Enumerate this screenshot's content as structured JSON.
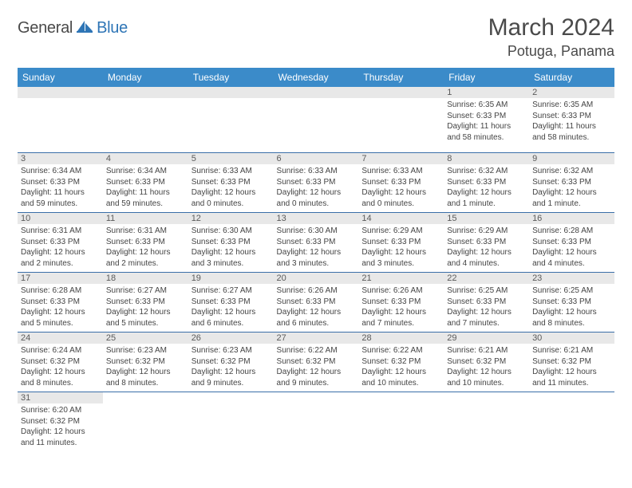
{
  "brand": {
    "part1": "General",
    "part2": "Blue"
  },
  "title": "March 2024",
  "location": "Potuga, Panama",
  "colors": {
    "header_bg": "#3b8bc9",
    "header_text": "#ffffff",
    "daynum_bg": "#e8e8e8",
    "daynum_text": "#5a5a5a",
    "row_border": "#3b6fa8",
    "brand_blue": "#2e75b6",
    "page_bg": "#ffffff"
  },
  "weekdays": [
    "Sunday",
    "Monday",
    "Tuesday",
    "Wednesday",
    "Thursday",
    "Friday",
    "Saturday"
  ],
  "weeks": [
    [
      null,
      null,
      null,
      null,
      null,
      {
        "n": "1",
        "sr": "6:35 AM",
        "ss": "6:33 PM",
        "dl": "11 hours and 58 minutes."
      },
      {
        "n": "2",
        "sr": "6:35 AM",
        "ss": "6:33 PM",
        "dl": "11 hours and 58 minutes."
      }
    ],
    [
      {
        "n": "3",
        "sr": "6:34 AM",
        "ss": "6:33 PM",
        "dl": "11 hours and 59 minutes."
      },
      {
        "n": "4",
        "sr": "6:34 AM",
        "ss": "6:33 PM",
        "dl": "11 hours and 59 minutes."
      },
      {
        "n": "5",
        "sr": "6:33 AM",
        "ss": "6:33 PM",
        "dl": "12 hours and 0 minutes."
      },
      {
        "n": "6",
        "sr": "6:33 AM",
        "ss": "6:33 PM",
        "dl": "12 hours and 0 minutes."
      },
      {
        "n": "7",
        "sr": "6:33 AM",
        "ss": "6:33 PM",
        "dl": "12 hours and 0 minutes."
      },
      {
        "n": "8",
        "sr": "6:32 AM",
        "ss": "6:33 PM",
        "dl": "12 hours and 1 minute."
      },
      {
        "n": "9",
        "sr": "6:32 AM",
        "ss": "6:33 PM",
        "dl": "12 hours and 1 minute."
      }
    ],
    [
      {
        "n": "10",
        "sr": "6:31 AM",
        "ss": "6:33 PM",
        "dl": "12 hours and 2 minutes."
      },
      {
        "n": "11",
        "sr": "6:31 AM",
        "ss": "6:33 PM",
        "dl": "12 hours and 2 minutes."
      },
      {
        "n": "12",
        "sr": "6:30 AM",
        "ss": "6:33 PM",
        "dl": "12 hours and 3 minutes."
      },
      {
        "n": "13",
        "sr": "6:30 AM",
        "ss": "6:33 PM",
        "dl": "12 hours and 3 minutes."
      },
      {
        "n": "14",
        "sr": "6:29 AM",
        "ss": "6:33 PM",
        "dl": "12 hours and 3 minutes."
      },
      {
        "n": "15",
        "sr": "6:29 AM",
        "ss": "6:33 PM",
        "dl": "12 hours and 4 minutes."
      },
      {
        "n": "16",
        "sr": "6:28 AM",
        "ss": "6:33 PM",
        "dl": "12 hours and 4 minutes."
      }
    ],
    [
      {
        "n": "17",
        "sr": "6:28 AM",
        "ss": "6:33 PM",
        "dl": "12 hours and 5 minutes."
      },
      {
        "n": "18",
        "sr": "6:27 AM",
        "ss": "6:33 PM",
        "dl": "12 hours and 5 minutes."
      },
      {
        "n": "19",
        "sr": "6:27 AM",
        "ss": "6:33 PM",
        "dl": "12 hours and 6 minutes."
      },
      {
        "n": "20",
        "sr": "6:26 AM",
        "ss": "6:33 PM",
        "dl": "12 hours and 6 minutes."
      },
      {
        "n": "21",
        "sr": "6:26 AM",
        "ss": "6:33 PM",
        "dl": "12 hours and 7 minutes."
      },
      {
        "n": "22",
        "sr": "6:25 AM",
        "ss": "6:33 PM",
        "dl": "12 hours and 7 minutes."
      },
      {
        "n": "23",
        "sr": "6:25 AM",
        "ss": "6:33 PM",
        "dl": "12 hours and 8 minutes."
      }
    ],
    [
      {
        "n": "24",
        "sr": "6:24 AM",
        "ss": "6:32 PM",
        "dl": "12 hours and 8 minutes."
      },
      {
        "n": "25",
        "sr": "6:23 AM",
        "ss": "6:32 PM",
        "dl": "12 hours and 8 minutes."
      },
      {
        "n": "26",
        "sr": "6:23 AM",
        "ss": "6:32 PM",
        "dl": "12 hours and 9 minutes."
      },
      {
        "n": "27",
        "sr": "6:22 AM",
        "ss": "6:32 PM",
        "dl": "12 hours and 9 minutes."
      },
      {
        "n": "28",
        "sr": "6:22 AM",
        "ss": "6:32 PM",
        "dl": "12 hours and 10 minutes."
      },
      {
        "n": "29",
        "sr": "6:21 AM",
        "ss": "6:32 PM",
        "dl": "12 hours and 10 minutes."
      },
      {
        "n": "30",
        "sr": "6:21 AM",
        "ss": "6:32 PM",
        "dl": "12 hours and 11 minutes."
      }
    ],
    [
      {
        "n": "31",
        "sr": "6:20 AM",
        "ss": "6:32 PM",
        "dl": "12 hours and 11 minutes."
      },
      null,
      null,
      null,
      null,
      null,
      null
    ]
  ],
  "labels": {
    "sunrise": "Sunrise:",
    "sunset": "Sunset:",
    "daylight": "Daylight:"
  }
}
